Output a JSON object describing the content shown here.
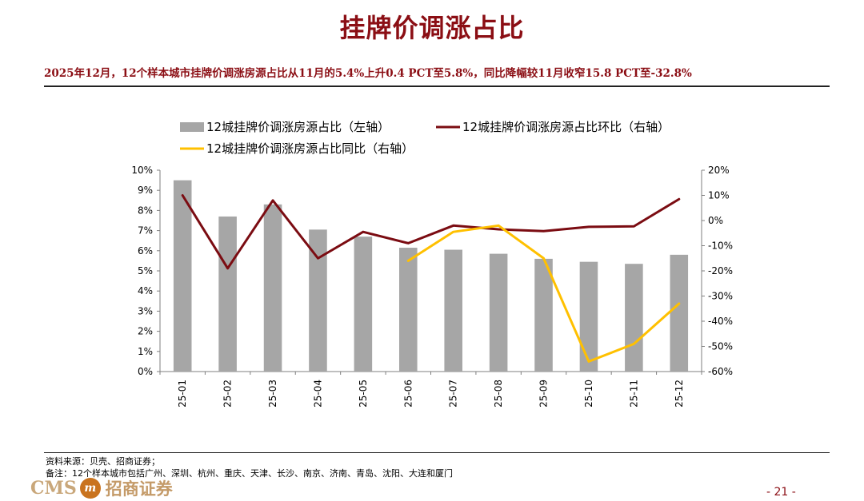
{
  "header": {
    "title": "挂牌价调涨占比",
    "subtitle": "2025年12月，12个样本城市挂牌价调涨房源占比从11月的5.4%上升0.4 PCT至5.8%，同比降幅较11月收窄15.8 PCT至-32.8%"
  },
  "chart_data": {
    "type": "bar",
    "categories": [
      "25-01",
      "25-02",
      "25-03",
      "25-04",
      "25-05",
      "25-06",
      "25-07",
      "25-08",
      "25-09",
      "25-10",
      "25-11",
      "25-12"
    ],
    "series": [
      {
        "name": "12城挂牌价调涨房源占比（左轴）",
        "type": "bar",
        "axis": "left",
        "values": [
          9.5,
          7.7,
          8.3,
          7.05,
          6.7,
          6.15,
          6.05,
          5.85,
          5.6,
          5.45,
          5.35,
          5.8
        ]
      },
      {
        "name": "12城挂牌价调涨房源占比环比（右轴）",
        "type": "line",
        "axis": "right",
        "values": [
          10,
          -19,
          8,
          -15,
          -4.5,
          -9,
          -2,
          -3.5,
          -4.2,
          -2.5,
          -2.3,
          8.5
        ]
      },
      {
        "name": "12城挂牌价调涨房源占比同比（右轴）",
        "type": "line",
        "axis": "right",
        "values": [
          null,
          null,
          null,
          null,
          null,
          -16,
          -4.5,
          -2,
          -15,
          -56,
          -49,
          -33
        ]
      }
    ],
    "y_left": {
      "min": 0,
      "max": 10,
      "step": 1,
      "unit": "%"
    },
    "y_right": {
      "min": -60,
      "max": 20,
      "step": 10,
      "unit": "%"
    },
    "legend_position": "top",
    "grid": false,
    "colors": {
      "bar": "#a6a6a6",
      "mom": "#7b0c12",
      "yoy": "#ffc000"
    }
  },
  "footer": {
    "source": "资料来源：贝壳、招商证券；",
    "note": "备注：12个样本城市包括广州、深圳、杭州、重庆、天津、长沙、南京、济南、青岛、沈阳、大连和厦门",
    "logo_en": "CMS",
    "logo_cn": "招商证券",
    "page": "- 21 -"
  }
}
